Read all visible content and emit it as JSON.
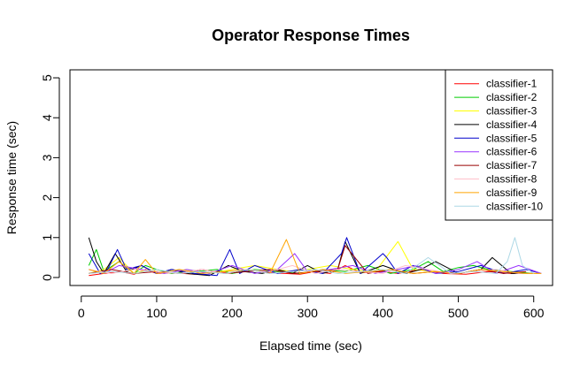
{
  "chart_data": {
    "type": "line",
    "title": "Operator Response Times",
    "xlabel": "Elapsed time (sec)",
    "ylabel": "Response time (sec)",
    "xlim": [
      -15,
      625
    ],
    "ylim": [
      -0.2,
      5.2
    ],
    "xticks": [
      0,
      100,
      200,
      300,
      400,
      500,
      600
    ],
    "yticks": [
      0,
      1,
      2,
      3,
      4,
      5
    ],
    "xtick_labels": [
      "0",
      "100",
      "200",
      "300",
      "400",
      "500",
      "600"
    ],
    "ytick_labels": [
      "0",
      "1",
      "2",
      "3",
      "4",
      "5"
    ],
    "grid": false,
    "legend_position": "top-right",
    "series": [
      {
        "name": "classifier-1",
        "color": "#ff0000",
        "x": [
          10,
          30,
          50,
          70,
          85,
          100,
          120,
          150,
          180,
          200,
          220,
          250,
          270,
          290,
          310,
          330,
          350,
          370,
          400,
          420,
          450,
          480,
          510,
          540,
          570,
          600
        ],
        "y": [
          0.05,
          0.1,
          0.15,
          0.08,
          0.2,
          0.1,
          0.12,
          0.08,
          0.15,
          0.1,
          0.2,
          0.12,
          0.1,
          0.08,
          0.15,
          0.1,
          0.3,
          0.12,
          0.15,
          0.1,
          0.2,
          0.1,
          0.08,
          0.15,
          0.1,
          0.1
        ]
      },
      {
        "name": "classifier-2",
        "color": "#00cc00",
        "x": [
          10,
          20,
          30,
          50,
          70,
          85,
          100,
          120,
          150,
          180,
          200,
          230,
          260,
          290,
          320,
          350,
          380,
          410,
          440,
          460,
          480,
          500,
          520,
          540,
          570,
          600
        ],
        "y": [
          0.3,
          0.7,
          0.15,
          0.4,
          0.1,
          0.3,
          0.2,
          0.1,
          0.15,
          0.2,
          0.1,
          0.2,
          0.15,
          0.1,
          0.2,
          0.15,
          0.3,
          0.1,
          0.2,
          0.4,
          0.15,
          0.25,
          0.3,
          0.2,
          0.15,
          0.1
        ]
      },
      {
        "name": "classifier-3",
        "color": "#ffff00",
        "x": [
          10,
          30,
          50,
          70,
          90,
          110,
          140,
          170,
          200,
          230,
          260,
          280,
          300,
          330,
          360,
          390,
          420,
          440,
          470,
          500,
          530,
          560,
          590,
          610
        ],
        "y": [
          0.1,
          0.2,
          0.5,
          0.1,
          0.2,
          0.1,
          0.2,
          0.1,
          0.2,
          0.3,
          0.2,
          0.15,
          0.2,
          0.3,
          0.2,
          0.15,
          0.9,
          0.2,
          0.15,
          0.1,
          0.2,
          0.15,
          0.1,
          0.1
        ]
      },
      {
        "name": "classifier-4",
        "color": "#000000",
        "x": [
          10,
          20,
          30,
          45,
          60,
          80,
          100,
          120,
          140,
          170,
          195,
          215,
          240,
          260,
          280,
          300,
          320,
          340,
          350,
          370,
          400,
          430,
          450,
          470,
          500,
          530,
          545,
          570,
          600
        ],
        "y": [
          1.0,
          0.4,
          0.1,
          0.6,
          0.15,
          0.3,
          0.1,
          0.2,
          0.1,
          0.05,
          0.3,
          0.15,
          0.1,
          0.2,
          0.1,
          0.3,
          0.1,
          0.2,
          0.9,
          0.1,
          0.3,
          0.1,
          0.2,
          0.4,
          0.1,
          0.2,
          0.5,
          0.1,
          0.1
        ]
      },
      {
        "name": "classifier-5",
        "color": "#0000cc",
        "x": [
          10,
          25,
          35,
          48,
          60,
          80,
          100,
          120,
          150,
          180,
          197,
          210,
          230,
          260,
          290,
          320,
          345,
          352,
          370,
          400,
          405,
          420,
          440,
          470,
          500,
          530,
          560,
          590,
          610
        ],
        "y": [
          0.6,
          0.1,
          0.2,
          0.7,
          0.2,
          0.3,
          0.1,
          0.2,
          0.1,
          0.05,
          0.7,
          0.1,
          0.3,
          0.1,
          0.2,
          0.1,
          0.6,
          1.0,
          0.1,
          0.6,
          0.5,
          0.1,
          0.3,
          0.1,
          0.15,
          0.3,
          0.1,
          0.2,
          0.1
        ]
      },
      {
        "name": "classifier-6",
        "color": "#9933ff",
        "x": [
          10,
          30,
          50,
          80,
          110,
          140,
          170,
          200,
          230,
          260,
          283,
          300,
          330,
          360,
          390,
          420,
          445,
          470,
          500,
          525,
          550,
          580,
          610
        ],
        "y": [
          0.2,
          0.1,
          0.3,
          0.2,
          0.1,
          0.2,
          0.1,
          0.3,
          0.1,
          0.2,
          0.6,
          0.15,
          0.2,
          0.3,
          0.1,
          0.2,
          0.3,
          0.1,
          0.2,
          0.4,
          0.1,
          0.3,
          0.1
        ]
      },
      {
        "name": "classifier-7",
        "color": "#990000",
        "x": [
          10,
          40,
          70,
          100,
          130,
          160,
          190,
          220,
          250,
          280,
          310,
          340,
          350,
          380,
          410,
          440,
          470,
          500,
          530,
          560,
          590
        ],
        "y": [
          0.1,
          0.2,
          0.1,
          0.15,
          0.1,
          0.2,
          0.1,
          0.15,
          0.2,
          0.1,
          0.15,
          0.2,
          0.8,
          0.1,
          0.2,
          0.1,
          0.15,
          0.1,
          0.2,
          0.1,
          0.15
        ]
      },
      {
        "name": "classifier-8",
        "color": "#ffc0cb",
        "x": [
          10,
          40,
          70,
          100,
          130,
          160,
          190,
          220,
          250,
          280,
          310,
          340,
          370,
          400,
          430,
          460,
          490,
          520,
          550,
          580,
          610
        ],
        "y": [
          0.2,
          0.1,
          0.2,
          0.15,
          0.1,
          0.2,
          0.1,
          0.2,
          0.15,
          0.3,
          0.1,
          0.2,
          0.15,
          0.1,
          0.3,
          0.2,
          0.1,
          0.15,
          0.2,
          0.1,
          0.1
        ]
      },
      {
        "name": "classifier-9",
        "color": "#ffa500",
        "x": [
          10,
          30,
          50,
          70,
          85,
          100,
          130,
          160,
          190,
          220,
          250,
          272,
          290,
          320,
          350,
          380,
          410,
          440,
          470,
          500,
          530,
          560,
          590,
          610
        ],
        "y": [
          0.2,
          0.1,
          0.4,
          0.1,
          0.45,
          0.1,
          0.2,
          0.1,
          0.15,
          0.2,
          0.1,
          0.95,
          0.1,
          0.2,
          0.1,
          0.15,
          0.2,
          0.1,
          0.15,
          0.1,
          0.2,
          0.15,
          0.1,
          0.1
        ]
      },
      {
        "name": "classifier-10",
        "color": "#add8e6",
        "x": [
          10,
          40,
          70,
          100,
          130,
          160,
          190,
          220,
          250,
          280,
          310,
          340,
          370,
          400,
          430,
          460,
          490,
          520,
          550,
          565,
          575,
          585,
          600
        ],
        "y": [
          0.1,
          0.15,
          0.1,
          0.2,
          0.1,
          0.15,
          0.1,
          0.2,
          0.1,
          0.15,
          0.2,
          0.1,
          0.15,
          0.2,
          0.1,
          0.5,
          0.1,
          0.15,
          0.1,
          0.4,
          1.0,
          0.3,
          0.1
        ]
      }
    ]
  }
}
